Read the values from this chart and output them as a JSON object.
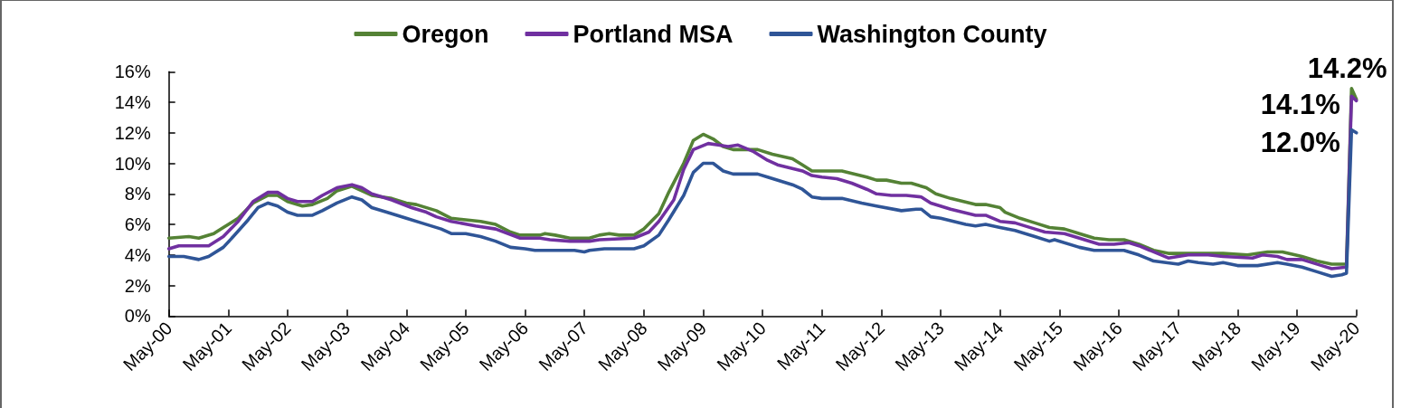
{
  "chart_data": {
    "type": "line",
    "legend": "top",
    "xlim": [
      "2000-05",
      "2020-05"
    ],
    "xticks": [
      {
        "value": "2000-05",
        "label": "May-00"
      },
      {
        "value": "2001-05",
        "label": "May-01"
      },
      {
        "value": "2002-05",
        "label": "May-02"
      },
      {
        "value": "2003-05",
        "label": "May-03"
      },
      {
        "value": "2004-05",
        "label": "May-04"
      },
      {
        "value": "2005-05",
        "label": "May-05"
      },
      {
        "value": "2006-05",
        "label": "May-06"
      },
      {
        "value": "2007-05",
        "label": "May-07"
      },
      {
        "value": "2008-05",
        "label": "May-08"
      },
      {
        "value": "2009-05",
        "label": "May-09"
      },
      {
        "value": "2010-05",
        "label": "May-10"
      },
      {
        "value": "2011-05",
        "label": "May-11"
      },
      {
        "value": "2012-05",
        "label": "May-12"
      },
      {
        "value": "2013-05",
        "label": "May-13"
      },
      {
        "value": "2014-05",
        "label": "May-14"
      },
      {
        "value": "2015-05",
        "label": "May-15"
      },
      {
        "value": "2016-05",
        "label": "May-16"
      },
      {
        "value": "2017-05",
        "label": "May-17"
      },
      {
        "value": "2018-05",
        "label": "May-18"
      },
      {
        "value": "2019-05",
        "label": "May-19"
      },
      {
        "value": "2020-05",
        "label": "May-20"
      }
    ],
    "ylim": [
      0,
      16
    ],
    "yticks": [
      {
        "value": 0,
        "label": "0%"
      },
      {
        "value": 2,
        "label": "2%"
      },
      {
        "value": 4,
        "label": "4%"
      },
      {
        "value": 6,
        "label": "6%"
      },
      {
        "value": 8,
        "label": "8%"
      },
      {
        "value": 10,
        "label": "10%"
      },
      {
        "value": 12,
        "label": "12%"
      },
      {
        "value": 14,
        "label": "14%"
      },
      {
        "value": 16,
        "label": "16%"
      }
    ],
    "series": [
      {
        "name": "Oregon",
        "color": "#548235",
        "x": [
          "2000-05",
          "2000-09",
          "2000-11",
          "2001-02",
          "2001-04",
          "2001-07",
          "2001-10",
          "2002-01",
          "2002-03",
          "2002-05",
          "2002-08",
          "2002-10",
          "2003-01",
          "2003-03",
          "2003-06",
          "2003-08",
          "2003-10",
          "2004-02",
          "2004-05",
          "2004-07",
          "2004-11",
          "2005-02",
          "2005-05",
          "2005-08",
          "2005-11",
          "2006-02",
          "2006-04",
          "2006-08",
          "2006-09",
          "2006-11",
          "2007-02",
          "2007-06",
          "2007-08",
          "2007-10",
          "2007-12",
          "2008-03",
          "2008-05",
          "2008-08",
          "2008-10",
          "2009-01",
          "2009-03",
          "2009-05",
          "2009-07",
          "2009-09",
          "2009-11",
          "2010-04",
          "2010-07",
          "2010-11",
          "2011-01",
          "2011-03",
          "2011-09",
          "2012-02",
          "2012-04",
          "2012-06",
          "2012-09",
          "2012-11",
          "2013-02",
          "2013-04",
          "2013-07",
          "2013-12",
          "2014-02",
          "2014-05",
          "2014-06",
          "2014-09",
          "2014-12",
          "2015-03",
          "2015-06",
          "2015-09",
          "2015-12",
          "2016-03",
          "2016-06",
          "2016-09",
          "2016-12",
          "2017-03",
          "2017-08",
          "2018-02",
          "2018-07",
          "2018-11",
          "2019-02",
          "2019-06",
          "2019-09",
          "2019-12",
          "2020-03",
          "2020-04",
          "2020-05"
        ],
        "values": [
          5.1,
          5.2,
          5.1,
          5.4,
          5.8,
          6.4,
          7.4,
          7.9,
          7.9,
          7.5,
          7.2,
          7.3,
          7.7,
          8.2,
          8.5,
          8.2,
          7.9,
          7.7,
          7.4,
          7.3,
          6.9,
          6.4,
          6.3,
          6.2,
          6.0,
          5.5,
          5.3,
          5.3,
          5.4,
          5.3,
          5.1,
          5.1,
          5.3,
          5.4,
          5.3,
          5.3,
          5.7,
          6.7,
          8.1,
          10.0,
          11.5,
          11.9,
          11.6,
          11.1,
          10.9,
          10.9,
          10.6,
          10.3,
          9.9,
          9.5,
          9.5,
          9.1,
          8.9,
          8.9,
          8.7,
          8.7,
          8.4,
          8.0,
          7.7,
          7.3,
          7.3,
          7.1,
          6.8,
          6.4,
          6.1,
          5.8,
          5.7,
          5.4,
          5.1,
          5.0,
          5.0,
          4.7,
          4.3,
          4.1,
          4.1,
          4.1,
          4.0,
          4.2,
          4.2,
          3.9,
          3.6,
          3.4,
          3.4,
          14.9,
          14.2
        ],
        "value_labels": [
          null,
          null,
          null,
          null,
          null,
          null,
          null,
          null,
          null,
          null,
          null,
          null,
          null,
          null,
          null,
          null,
          null,
          null,
          null,
          null,
          null,
          null,
          null,
          null,
          null,
          null,
          null,
          null,
          null,
          null,
          null,
          null,
          null,
          null,
          null,
          null,
          null,
          null,
          null,
          null,
          null,
          null,
          null,
          null,
          null,
          null,
          null,
          null,
          null,
          null,
          null,
          null,
          null,
          null,
          null,
          null,
          null,
          null,
          null,
          null,
          null,
          null,
          null,
          null,
          null,
          null,
          null,
          null,
          null,
          null,
          null,
          null,
          null,
          null,
          null,
          null,
          null,
          null,
          null,
          null,
          null,
          null,
          null,
          null,
          "14.2%"
        ]
      },
      {
        "name": "Portland MSA",
        "color": "#7030a0",
        "x": [
          "2000-05",
          "2000-07",
          "2001-01",
          "2001-04",
          "2001-07",
          "2001-10",
          "2002-01",
          "2002-03",
          "2002-05",
          "2002-07",
          "2002-10",
          "2002-12",
          "2003-03",
          "2003-06",
          "2003-08",
          "2003-10",
          "2004-02",
          "2004-06",
          "2004-09",
          "2004-11",
          "2005-02",
          "2005-07",
          "2005-11",
          "2006-04",
          "2006-08",
          "2006-10",
          "2007-02",
          "2007-06",
          "2007-08",
          "2008-03",
          "2008-06",
          "2008-08",
          "2008-11",
          "2009-01",
          "2009-03",
          "2009-06",
          "2009-08",
          "2009-10",
          "2009-12",
          "2010-03",
          "2010-06",
          "2010-08",
          "2011-01",
          "2011-03",
          "2011-05",
          "2011-08",
          "2011-11",
          "2012-02",
          "2012-04",
          "2012-07",
          "2012-10",
          "2013-01",
          "2013-03",
          "2013-07",
          "2013-12",
          "2014-02",
          "2014-05",
          "2014-08",
          "2014-12",
          "2015-02",
          "2015-06",
          "2015-09",
          "2016-01",
          "2016-04",
          "2016-07",
          "2016-09",
          "2016-12",
          "2017-03",
          "2017-07",
          "2017-11",
          "2018-02",
          "2018-08",
          "2018-10",
          "2019-01",
          "2019-03",
          "2019-06",
          "2019-10",
          "2019-12",
          "2020-03",
          "2020-04",
          "2020-05"
        ],
        "values": [
          4.4,
          4.6,
          4.6,
          5.2,
          6.2,
          7.5,
          8.1,
          8.1,
          7.7,
          7.5,
          7.5,
          7.9,
          8.4,
          8.6,
          8.4,
          8.0,
          7.6,
          7.1,
          6.8,
          6.5,
          6.2,
          5.9,
          5.7,
          5.1,
          5.1,
          5.0,
          4.9,
          4.9,
          5.0,
          5.1,
          5.5,
          6.2,
          7.6,
          9.6,
          10.9,
          11.3,
          11.2,
          11.1,
          11.2,
          10.8,
          10.2,
          9.9,
          9.5,
          9.2,
          9.1,
          9.0,
          8.7,
          8.3,
          8.0,
          7.9,
          7.9,
          7.8,
          7.4,
          7.0,
          6.6,
          6.6,
          6.2,
          6.1,
          5.7,
          5.5,
          5.4,
          5.1,
          4.7,
          4.7,
          4.8,
          4.6,
          4.2,
          3.8,
          4.0,
          4.0,
          3.9,
          3.8,
          4.0,
          3.9,
          3.7,
          3.7,
          3.3,
          3.1,
          3.2,
          14.4,
          14.1
        ],
        "value_labels": [
          null,
          null,
          null,
          null,
          null,
          null,
          null,
          null,
          null,
          null,
          null,
          null,
          null,
          null,
          null,
          null,
          null,
          null,
          null,
          null,
          null,
          null,
          null,
          null,
          null,
          null,
          null,
          null,
          null,
          null,
          null,
          null,
          null,
          null,
          null,
          null,
          null,
          null,
          null,
          null,
          null,
          null,
          null,
          null,
          null,
          null,
          null,
          null,
          null,
          null,
          null,
          null,
          null,
          null,
          null,
          null,
          null,
          null,
          null,
          null,
          null,
          null,
          null,
          null,
          null,
          null,
          null,
          null,
          null,
          null,
          null,
          null,
          null,
          null,
          null,
          null,
          null,
          null,
          null,
          null,
          "14.1%"
        ]
      },
      {
        "name": "Washington County",
        "color": "#2f5597",
        "x": [
          "2000-05",
          "2000-08",
          "2000-11",
          "2001-01",
          "2001-04",
          "2001-06",
          "2001-09",
          "2001-11",
          "2002-01",
          "2002-03",
          "2002-05",
          "2002-07",
          "2002-10",
          "2002-12",
          "2003-03",
          "2003-06",
          "2003-08",
          "2003-10",
          "2004-01",
          "2004-05",
          "2004-08",
          "2004-12",
          "2005-02",
          "2005-05",
          "2005-08",
          "2005-11",
          "2006-02",
          "2006-05",
          "2006-07",
          "2007-03",
          "2007-05",
          "2007-06",
          "2007-09",
          "2008-03",
          "2008-05",
          "2008-08",
          "2008-10",
          "2009-01",
          "2009-03",
          "2009-05",
          "2009-07",
          "2009-09",
          "2009-11",
          "2010-04",
          "2010-06",
          "2010-11",
          "2011-01",
          "2011-03",
          "2011-05",
          "2011-09",
          "2012-01",
          "2012-04",
          "2012-09",
          "2012-12",
          "2013-01",
          "2013-03",
          "2013-05",
          "2013-10",
          "2013-12",
          "2014-02",
          "2014-05",
          "2014-08",
          "2014-12",
          "2015-03",
          "2015-04",
          "2015-09",
          "2015-12",
          "2016-06",
          "2016-09",
          "2016-12",
          "2017-05",
          "2017-07",
          "2017-09",
          "2017-12",
          "2018-02",
          "2018-05",
          "2018-09",
          "2019-01",
          "2019-03",
          "2019-06",
          "2019-09",
          "2019-12",
          "2020-02",
          "2020-03",
          "2020-04",
          "2020-05"
        ],
        "values": [
          3.9,
          3.9,
          3.7,
          3.9,
          4.5,
          5.2,
          6.3,
          7.1,
          7.4,
          7.2,
          6.8,
          6.6,
          6.6,
          6.9,
          7.4,
          7.8,
          7.6,
          7.1,
          6.8,
          6.4,
          6.1,
          5.7,
          5.4,
          5.4,
          5.2,
          4.9,
          4.5,
          4.4,
          4.3,
          4.3,
          4.2,
          4.3,
          4.4,
          4.4,
          4.6,
          5.3,
          6.3,
          7.9,
          9.4,
          10.0,
          10.0,
          9.5,
          9.3,
          9.3,
          9.1,
          8.6,
          8.3,
          7.8,
          7.7,
          7.7,
          7.4,
          7.2,
          6.9,
          7.0,
          7.0,
          6.5,
          6.4,
          6.0,
          5.9,
          6.0,
          5.8,
          5.6,
          5.2,
          4.9,
          5.0,
          4.5,
          4.3,
          4.3,
          4.0,
          3.6,
          3.4,
          3.6,
          3.5,
          3.4,
          3.5,
          3.3,
          3.3,
          3.5,
          3.4,
          3.2,
          2.9,
          2.6,
          2.7,
          2.8,
          12.2,
          12.0
        ],
        "value_labels": [
          null,
          null,
          null,
          null,
          null,
          null,
          null,
          null,
          null,
          null,
          null,
          null,
          null,
          null,
          null,
          null,
          null,
          null,
          null,
          null,
          null,
          null,
          null,
          null,
          null,
          null,
          null,
          null,
          null,
          null,
          null,
          null,
          null,
          null,
          null,
          null,
          null,
          null,
          null,
          null,
          null,
          null,
          null,
          null,
          null,
          null,
          null,
          null,
          null,
          null,
          null,
          null,
          null,
          null,
          null,
          null,
          null,
          null,
          null,
          null,
          null,
          null,
          null,
          null,
          null,
          null,
          null,
          null,
          null,
          null,
          null,
          null,
          null,
          null,
          null,
          null,
          null,
          null,
          null,
          null,
          null,
          null,
          null,
          null,
          null,
          "12.0%"
        ]
      }
    ]
  }
}
